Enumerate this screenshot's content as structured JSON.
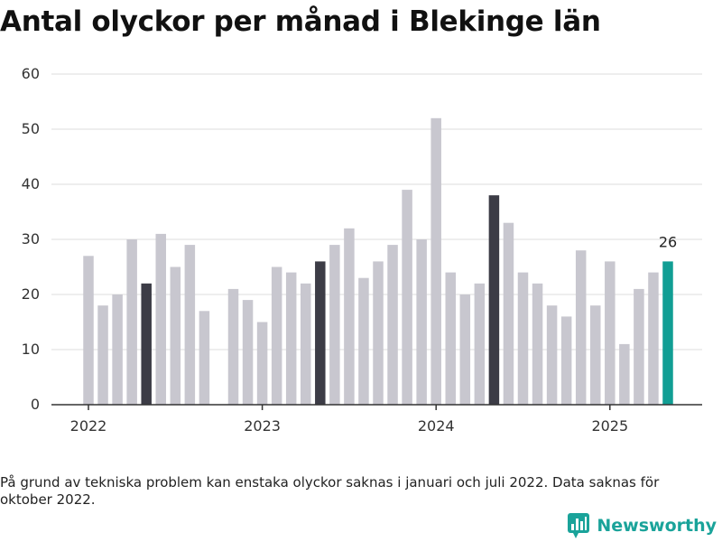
{
  "title": "Antal olyckor per månad i Blekinge län",
  "footnote": "På grund av tekniska problem kan enstaka olyckor saknas i januari och juli 2022. Data saknas för oktober 2022.",
  "brand": {
    "name": "Newsworthy",
    "icon": "newsworthy-bar-chart-logo-icon"
  },
  "colors": {
    "bar": "#c8c7cf",
    "highlight": "#3c3c46",
    "latest": "#119e94",
    "grid": "#dddddd",
    "axis": "#333333"
  },
  "chart_data": {
    "type": "bar",
    "title": "Antal olyckor per månad i Blekinge län",
    "xlabel": "",
    "ylabel": "",
    "ylim": [
      0,
      60
    ],
    "yticks": [
      0,
      10,
      20,
      30,
      40,
      50,
      60
    ],
    "xticks": [
      {
        "label": "2022",
        "month": "2022-01"
      },
      {
        "label": "2023",
        "month": "2023-01"
      },
      {
        "label": "2024",
        "month": "2024-01"
      },
      {
        "label": "2025",
        "month": "2025-01"
      }
    ],
    "grid": true,
    "legend": "none",
    "annotation": {
      "month": "2025-05",
      "text": "26"
    },
    "categories": [
      "2022-01",
      "2022-02",
      "2022-03",
      "2022-04",
      "2022-05",
      "2022-06",
      "2022-07",
      "2022-08",
      "2022-09",
      "2022-10",
      "2022-11",
      "2022-12",
      "2023-01",
      "2023-02",
      "2023-03",
      "2023-04",
      "2023-05",
      "2023-06",
      "2023-07",
      "2023-08",
      "2023-09",
      "2023-10",
      "2023-11",
      "2023-12",
      "2024-01",
      "2024-02",
      "2024-03",
      "2024-04",
      "2024-05",
      "2024-06",
      "2024-07",
      "2024-08",
      "2024-09",
      "2024-10",
      "2024-11",
      "2024-12",
      "2025-01",
      "2025-02",
      "2025-03",
      "2025-04",
      "2025-05"
    ],
    "values": [
      27,
      18,
      20,
      30,
      22,
      31,
      25,
      29,
      17,
      null,
      21,
      19,
      15,
      25,
      24,
      22,
      26,
      29,
      32,
      23,
      26,
      29,
      39,
      30,
      52,
      24,
      20,
      22,
      38,
      33,
      24,
      22,
      18,
      16,
      28,
      18,
      26,
      11,
      21,
      24,
      26
    ],
    "highlight_months": [
      "2022-05",
      "2023-05",
      "2024-05"
    ],
    "latest_month": "2025-05"
  }
}
